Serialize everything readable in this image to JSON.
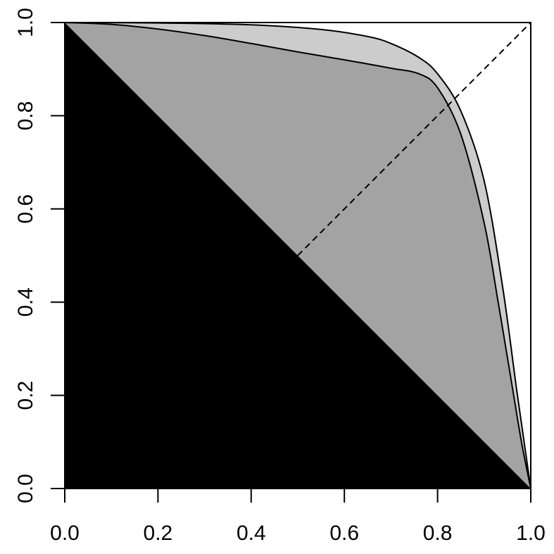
{
  "chart_data": {
    "type": "area",
    "title": "",
    "xlabel": "",
    "ylabel": "",
    "xlim": [
      0,
      1
    ],
    "ylim": [
      0,
      1
    ],
    "x_ticks": [
      0.0,
      0.2,
      0.4,
      0.6,
      0.8,
      1.0
    ],
    "y_ticks": [
      0.0,
      0.2,
      0.4,
      0.6,
      0.8,
      1.0
    ],
    "x_tick_labels": [
      "0.0",
      "0.2",
      "0.4",
      "0.6",
      "0.8",
      "1.0"
    ],
    "y_tick_labels": [
      "0.0",
      "0.2",
      "0.4",
      "0.6",
      "0.8",
      "1.0"
    ],
    "grid": false,
    "legend": "none",
    "series": [
      {
        "kind": "filled-triangle",
        "x": [
          0,
          1,
          0
        ],
        "y": [
          1,
          0,
          0
        ],
        "color": "#000000"
      },
      {
        "kind": "curve",
        "x": [
          0,
          0.1,
          0.2,
          0.3,
          0.4,
          0.5,
          0.6,
          0.7,
          0.76,
          0.8,
          0.85,
          0.9,
          0.93,
          0.96,
          0.98,
          1.0
        ],
        "y": [
          1,
          0.996,
          0.986,
          0.972,
          0.955,
          0.937,
          0.92,
          0.902,
          0.89,
          0.86,
          0.76,
          0.57,
          0.4,
          0.22,
          0.1,
          0
        ],
        "fill": "#a3a3a3"
      },
      {
        "kind": "curve",
        "x": [
          0,
          0.2,
          0.4,
          0.55,
          0.65,
          0.7,
          0.76,
          0.8,
          0.85,
          0.9,
          0.94,
          0.97,
          0.99,
          1.0
        ],
        "y": [
          1,
          0.999,
          0.995,
          0.985,
          0.97,
          0.955,
          0.925,
          0.89,
          0.81,
          0.66,
          0.43,
          0.21,
          0.07,
          0
        ],
        "fill": "#a3a3a3"
      },
      {
        "kind": "reference-line-dashed",
        "x": [
          0.5,
          1.0
        ],
        "y": [
          0.5,
          1.0
        ],
        "color": "#000000"
      }
    ],
    "overlap_fill": "#a3a3a3",
    "non_overlap_fill": "#cccccc",
    "background": "#ffffff"
  }
}
